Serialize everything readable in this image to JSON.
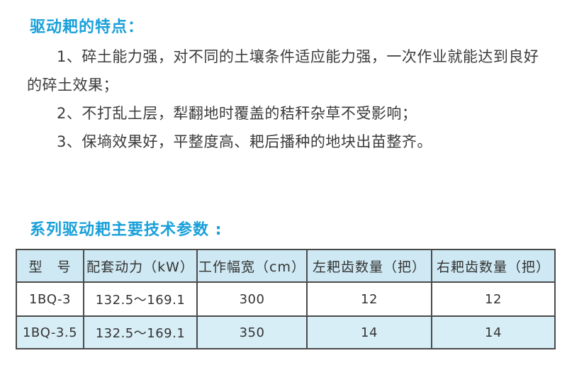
{
  "page": {
    "background": "#ffffff"
  },
  "colors": {
    "section_title": "#18a0da",
    "body_text": "#3b3b3b",
    "table_text": "#333333",
    "table_border": "#4a4a4a",
    "table_header_bg": "#cee9f3",
    "table_row1_bg": "#ffffff",
    "table_row2_bg": "#d8eef7"
  },
  "features": {
    "title": "驱动耙的特点：",
    "items": [
      "1、碎土能力强，对不同的土壤条件适应能力强，一次作业就能达到良好的碎土效果；",
      "2、不打乱土层，犁翻地时覆盖的秸秆杂草不受影响；",
      "3、保墒效果好，平整度高、耙后播种的地块出苗整齐。"
    ]
  },
  "parameters": {
    "title": "系列驱动耙主要技术参数 :",
    "table": {
      "headers": [
        "型　号",
        "配套动力（kW）",
        "工作幅宽（cm）",
        "左耙齿数量（把）",
        "右耙齿数量（把）"
      ],
      "rows": [
        [
          "1BQ-3",
          "132.5～169.1",
          "300",
          "12",
          "12"
        ],
        [
          "1BQ-3.5",
          "132.5～169.1",
          "350",
          "14",
          "14"
        ]
      ]
    }
  }
}
